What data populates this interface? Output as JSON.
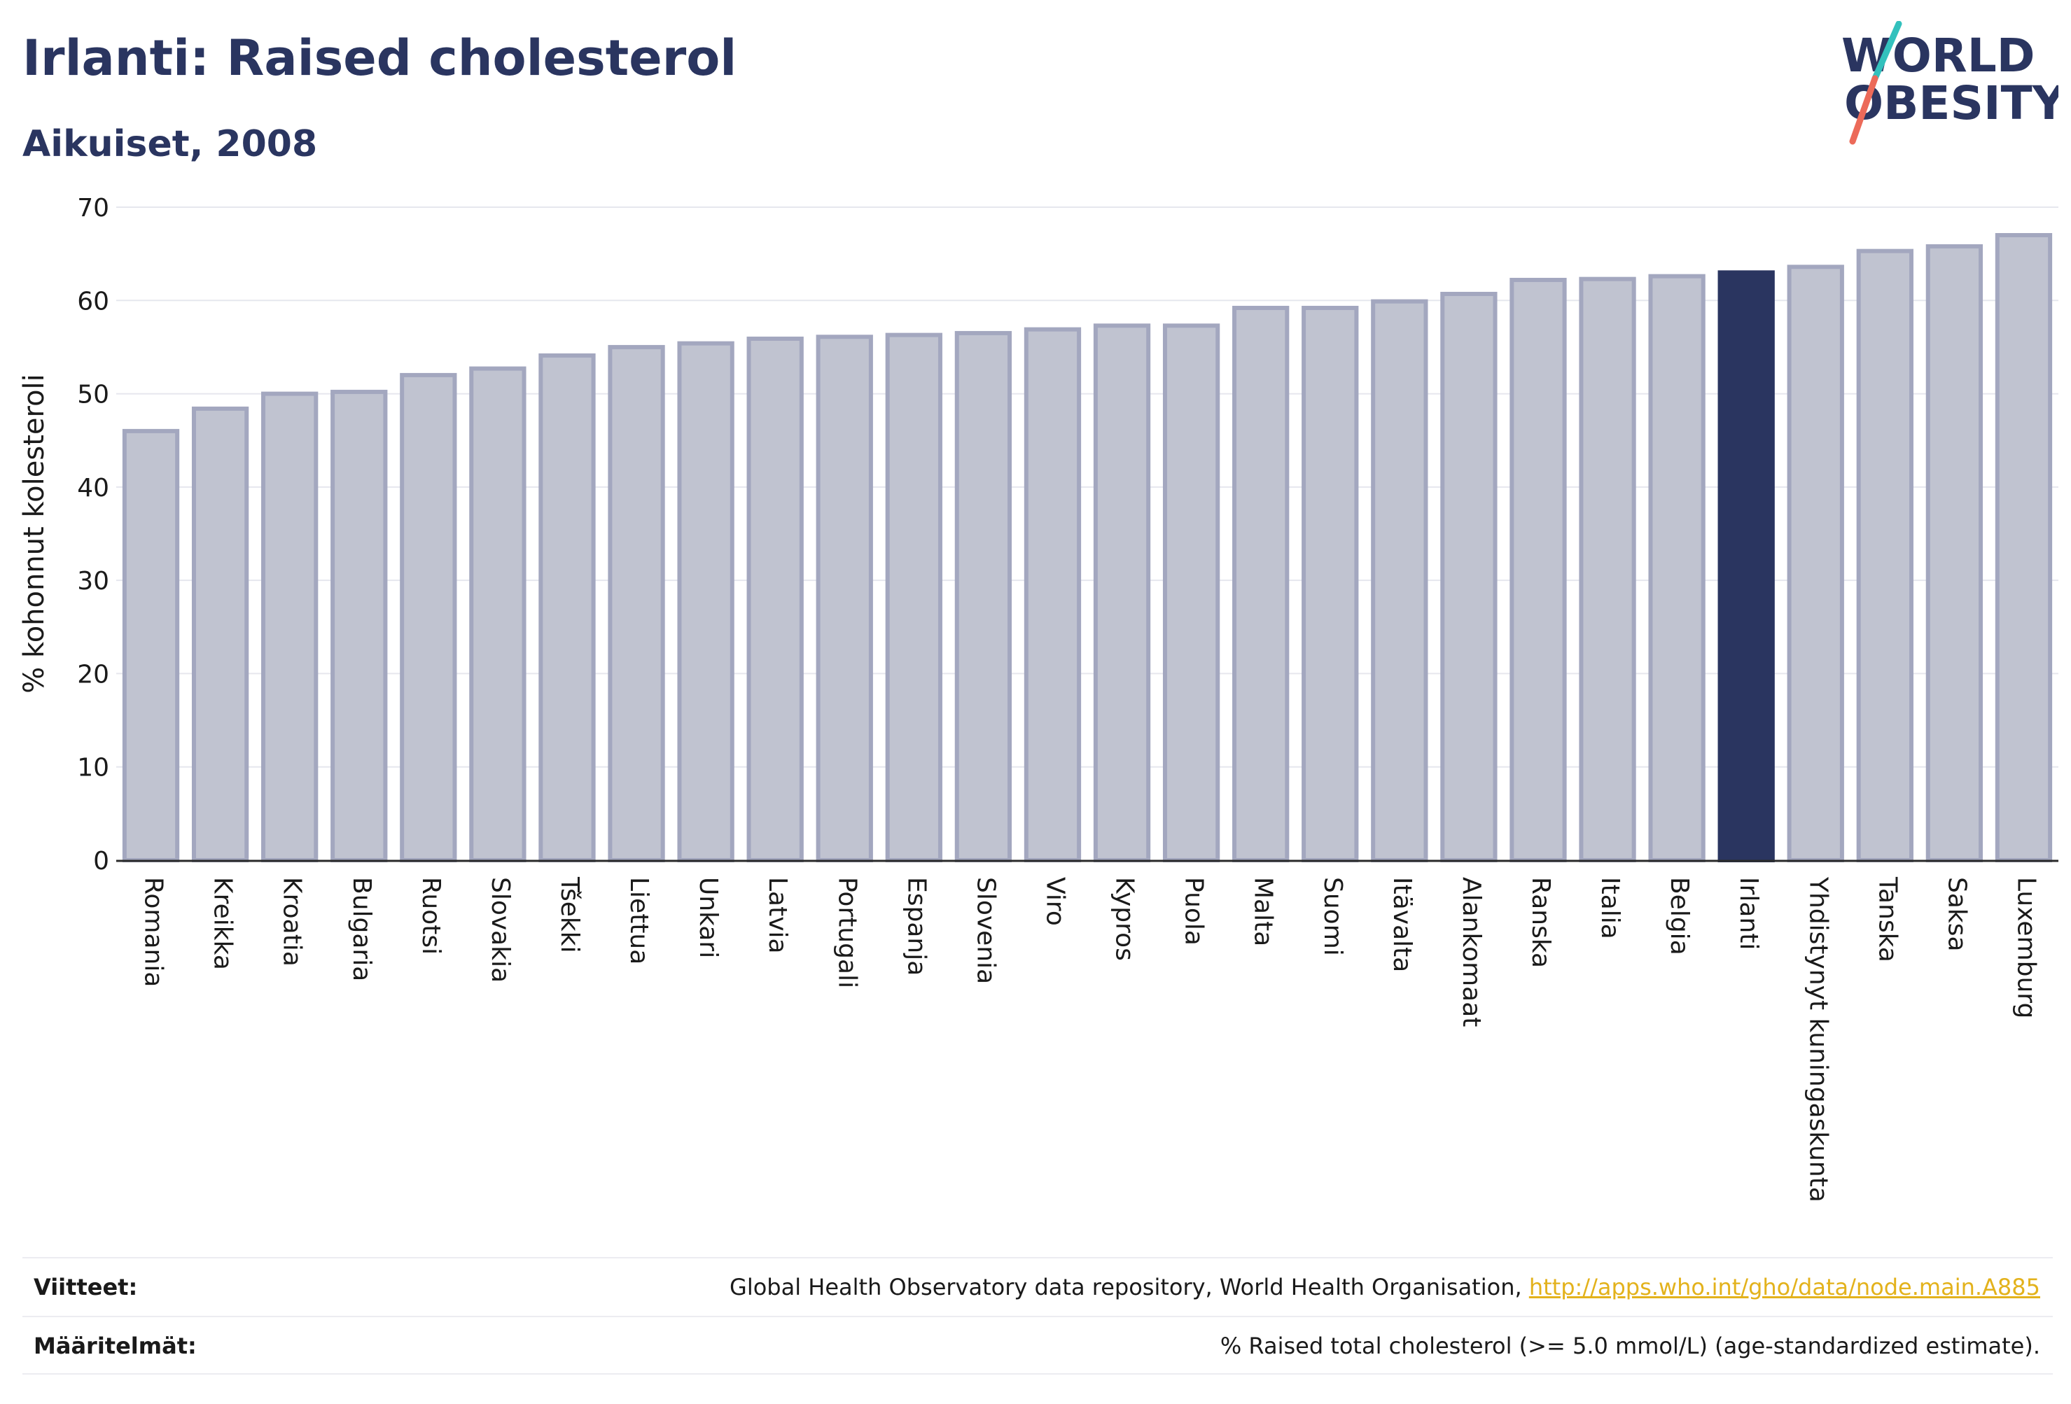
{
  "header": {
    "title": "Irlanti: Raised cholesterol",
    "subtitle": "Aikuiset, 2008"
  },
  "logo": {
    "line1": "WORLD",
    "line2": "OBESITY",
    "name": "world-obesity-logo"
  },
  "footer": {
    "sources_label": "Viitteet:",
    "sources_text": "Global Health Observatory data repository, World Health Organisation, ",
    "sources_link": "http://apps.who.int/gho/data/node.main.A885",
    "definitions_label": "Määritelmät:",
    "definitions_text": "% Raised total cholesterol (>= 5.0 mmol/L) (age-standardized estimate)."
  },
  "colors": {
    "highlight": "#2a3560",
    "bar_fill": "#c0c3d0",
    "bar_stroke": "#a3a7bf",
    "grid": "#e6e7ee",
    "link": "#e3b21c",
    "logo_slash_top": "#33c1bd",
    "logo_slash_bottom": "#ec6a59"
  },
  "chart_data": {
    "type": "bar",
    "title": "Irlanti: Raised cholesterol",
    "subtitle": "Aikuiset, 2008",
    "xlabel": "",
    "ylabel": "% kohonnut kolesteroli",
    "ylim": [
      0,
      70
    ],
    "yticks": [
      0,
      10,
      20,
      30,
      40,
      50,
      60,
      70
    ],
    "grid": true,
    "highlight": "Irlanti",
    "categories": [
      "Romania",
      "Kreikka",
      "Kroatia",
      "Bulgaria",
      "Ruotsi",
      "Slovakia",
      "Tšekki",
      "Liettua",
      "Unkari",
      "Latvia",
      "Portugali",
      "Espanja",
      "Slovenia",
      "Viro",
      "Kypros",
      "Puola",
      "Malta",
      "Suomi",
      "Itävalta",
      "Alankomaat",
      "Ranska",
      "Italia",
      "Belgia",
      "Irlanti",
      "Yhdistynyt kuningaskunta",
      "Tanska",
      "Saksa",
      "Luxemburg"
    ],
    "values": [
      46.0,
      48.4,
      50.0,
      50.2,
      52.0,
      52.7,
      54.1,
      55.0,
      55.4,
      55.9,
      56.1,
      56.3,
      56.5,
      56.9,
      57.3,
      57.3,
      59.2,
      59.2,
      59.9,
      60.7,
      62.2,
      62.3,
      62.6,
      63.0,
      63.6,
      65.3,
      65.8,
      67.0
    ]
  }
}
